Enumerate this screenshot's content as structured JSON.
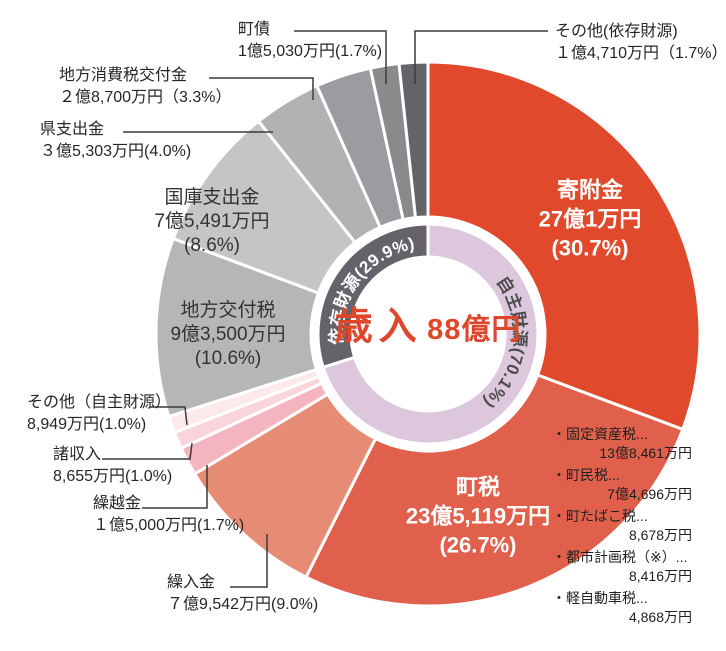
{
  "chart_data": {
    "type": "pie",
    "title": "歳入 88億円",
    "legend_position": "around",
    "center": {
      "title": "歳入",
      "total": "88億円"
    },
    "inner_ring": [
      {
        "name": "自主財源",
        "label": "自主財源(70.1%)",
        "value": 70.1,
        "color": "#dcc7dd",
        "text_color": "#4c4c4c"
      },
      {
        "name": "依存財源",
        "label": "依存財源(29.9%)",
        "value": 29.9,
        "color": "#656369",
        "text_color": "#ffffff"
      }
    ],
    "segments": [
      {
        "name": "寄附金",
        "amount": "27億1万円",
        "pct": "(30.7%)",
        "value": 30.7,
        "color": "#e0492c"
      },
      {
        "name": "町税",
        "amount": "23億5,119万円",
        "pct": "(26.7%)",
        "value": 26.7,
        "color": "#e0604b"
      },
      {
        "name": "繰入金",
        "amount": "７億9,542万円",
        "pct": "(9.0%)",
        "value": 9.0,
        "color": "#e68b74"
      },
      {
        "name": "繰越金",
        "amount": "１億5,000万円",
        "pct": "(1.7%)",
        "value": 1.7,
        "color": "#f5b5c0"
      },
      {
        "name": "諸収入",
        "amount": "8,655万円",
        "pct": "(1.0%)",
        "value": 1.0,
        "color": "#f9d4db"
      },
      {
        "name": "その他（自主財源）",
        "amount": "8,949万円",
        "pct": "(1.0%)",
        "value": 1.0,
        "color": "#fce9ec"
      },
      {
        "name": "地方交付税",
        "amount": "9億3,500万円",
        "pct": "(10.6%)",
        "value": 10.6,
        "color": "#b5b6b8"
      },
      {
        "name": "国庫支出金",
        "amount": "7億5,491万円",
        "pct": "(8.6%)",
        "value": 8.6,
        "color": "#c4c5c7"
      },
      {
        "name": "県支出金",
        "amount": "３億5,303万円",
        "pct": "(4.0%)",
        "value": 4.0,
        "color": "#b1b2b4"
      },
      {
        "name": "地方消費税交付金",
        "amount": "２億8,700万円",
        "pct": "（3.3%）",
        "value": 3.3,
        "color": "#9b9c9f"
      },
      {
        "name": "町債",
        "amount": "1億5,030万円",
        "pct": "(1.7%)",
        "value": 1.7,
        "color": "#8a8a8d"
      },
      {
        "name": "その他(依存財源)",
        "amount": "１億4,710万円",
        "pct": "（1.7%）",
        "value": 1.7,
        "color": "#646367"
      }
    ],
    "breakdown": {
      "items": [
        {
          "name": "・固定資産税...",
          "amount": "13億8,461万円"
        },
        {
          "name": "・町民税...",
          "amount": "7億4,696万円"
        },
        {
          "name": "・町たばこ税...",
          "amount": "8,678万円"
        },
        {
          "name": "・都市計画税（※）...",
          "amount": "8,416万円"
        },
        {
          "name": "・軽自動車税...",
          "amount": "4,868万円"
        }
      ]
    }
  }
}
